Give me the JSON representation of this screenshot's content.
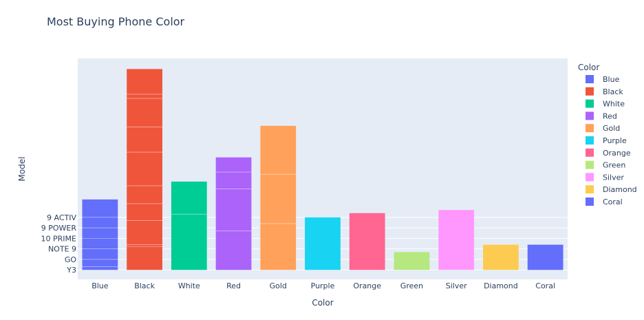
{
  "chart_data": {
    "type": "bar",
    "title": "Most Buying Phone Color",
    "xlabel": "Color",
    "ylabel": "Model",
    "ytick_labels": [
      "Y3",
      "GO",
      "NOTE 9",
      "10 PRIME",
      "9 POWER",
      "9 ACTIV"
    ],
    "categories": [
      "Blue",
      "Black",
      "White",
      "Red",
      "Gold",
      "Purple",
      "Orange",
      "Green",
      "Silver",
      "Diamond",
      "Coral"
    ],
    "values": [
      6.7,
      19.1,
      8.4,
      10.7,
      13.7,
      5.0,
      5.4,
      1.7,
      5.7,
      2.4,
      2.4
    ],
    "segment_boundaries": [
      [
        0.3,
        1.0,
        2.0,
        3.0,
        4.0,
        5.0
      ],
      [
        2.2,
        2.4,
        4.7,
        6.3,
        8.0,
        11.2,
        13.6,
        16.3,
        16.7
      ],
      [
        5.3
      ],
      [
        3.7,
        7.7,
        9.3
      ],
      [
        4.4,
        9.1
      ],
      [],
      [],
      [],
      [],
      [],
      []
    ],
    "colors": [
      "#636efa",
      "#EF553B",
      "#00cc96",
      "#ab63fa",
      "#FFA15A",
      "#19d3f3",
      "#FF6692",
      "#B6E880",
      "#FF97FF",
      "#FECB52",
      "#636efa"
    ],
    "legend_title": "Color",
    "legend_position": "right",
    "ylim": [
      -0.9,
      20.1
    ],
    "grid": true
  }
}
